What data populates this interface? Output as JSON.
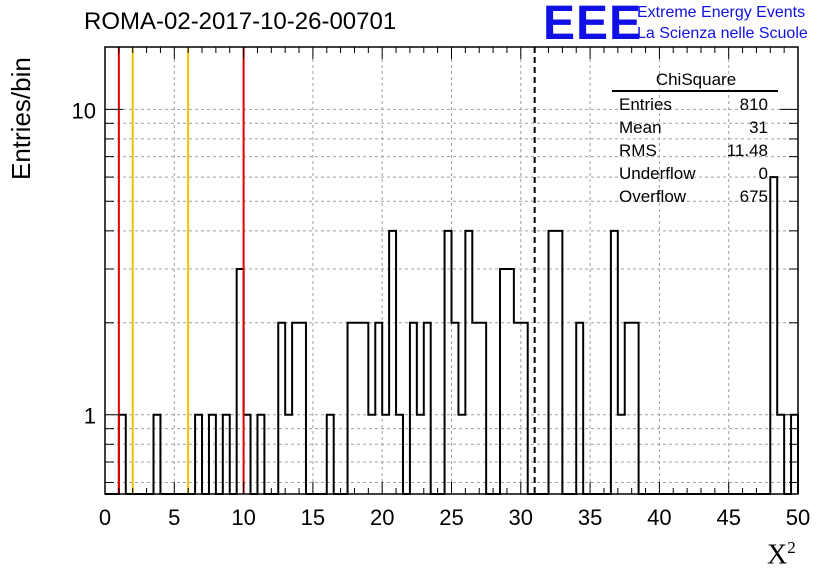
{
  "header": {
    "title": "ROMA-02-2017-10-26-00701",
    "logo_text": "EEE",
    "brand_line1": "Extreme Energy Events",
    "brand_line2": "La Scienza nelle Scuole"
  },
  "colors": {
    "brand_blue": "#1010e6",
    "red_lines": "#e00000",
    "yellow_lines": "#f0c000",
    "grid": "#a0a0a0"
  },
  "stats_box": {
    "title": "ChiSquare",
    "rows": [
      {
        "label": "Entries",
        "value": "810"
      },
      {
        "label": "Mean",
        "value": "31"
      },
      {
        "label": "RMS",
        "value": "11.48"
      },
      {
        "label": "Underflow",
        "value": "0"
      },
      {
        "label": "Overflow",
        "value": "675"
      }
    ]
  },
  "chart_data": {
    "type": "histogram",
    "title": "ROMA-02-2017-10-26-00701",
    "xlabel": "X",
    "xlabel_superscript": "2",
    "ylabel": "Entries/bin",
    "xlim": [
      0,
      50
    ],
    "ylim": [
      0.55,
      16
    ],
    "yscale": "log",
    "bin_width": 0.5,
    "grid": true,
    "x_ticks": [
      "0",
      "5",
      "10",
      "15",
      "20",
      "25",
      "30",
      "35",
      "40",
      "45",
      "50"
    ],
    "y_ticks": [
      "1",
      "10"
    ],
    "counts": [
      0,
      0,
      1,
      0,
      0,
      0,
      0,
      1,
      0,
      0,
      0,
      0,
      0,
      1,
      0,
      1,
      0,
      1,
      0,
      3,
      1,
      0,
      1,
      0,
      0,
      2,
      1,
      2,
      2,
      0,
      0,
      0,
      1,
      0,
      0,
      2,
      2,
      2,
      1,
      2,
      1,
      4,
      1,
      0,
      2,
      1,
      2,
      0,
      0,
      4,
      2,
      1,
      4,
      2,
      2,
      0,
      0,
      3,
      3,
      2,
      2,
      0,
      0,
      0,
      4,
      4,
      0,
      0,
      2,
      0,
      0,
      0,
      0,
      4,
      1,
      2,
      2,
      0,
      0,
      0,
      0,
      0,
      0,
      0,
      0,
      0,
      0,
      0,
      0,
      0,
      0,
      0,
      0,
      0,
      0,
      0,
      6,
      1,
      0,
      1
    ],
    "series": [
      {
        "values": [
          0,
          0,
          1,
          0,
          0,
          0,
          0,
          1,
          0,
          0,
          0,
          0,
          0,
          1,
          0,
          1,
          0,
          1,
          0,
          3,
          1,
          0,
          1,
          0,
          0,
          2,
          1,
          2,
          2,
          0,
          0,
          0,
          1,
          0,
          0,
          2,
          2,
          2,
          1,
          2,
          1,
          4,
          1,
          0,
          2,
          1,
          2,
          0,
          0,
          4,
          2,
          1,
          4,
          2,
          2,
          0,
          0,
          3,
          3,
          2,
          2,
          0,
          0,
          0,
          4,
          4,
          0,
          0,
          2,
          0,
          0,
          0,
          0,
          4,
          1,
          2,
          2,
          0,
          0,
          0,
          0,
          0,
          0,
          0,
          0,
          0,
          0,
          0,
          0,
          0,
          0,
          0,
          0,
          0,
          0,
          0,
          6,
          1,
          0,
          1
        ]
      }
    ],
    "vertical_lines": [
      {
        "x": 1,
        "color": "red",
        "style": "solid"
      },
      {
        "x": 2,
        "color": "yellow",
        "style": "solid"
      },
      {
        "x": 6,
        "color": "yellow",
        "style": "solid"
      },
      {
        "x": 10,
        "color": "red",
        "style": "solid"
      },
      {
        "x": 31,
        "color": "black",
        "style": "dashed"
      }
    ]
  }
}
